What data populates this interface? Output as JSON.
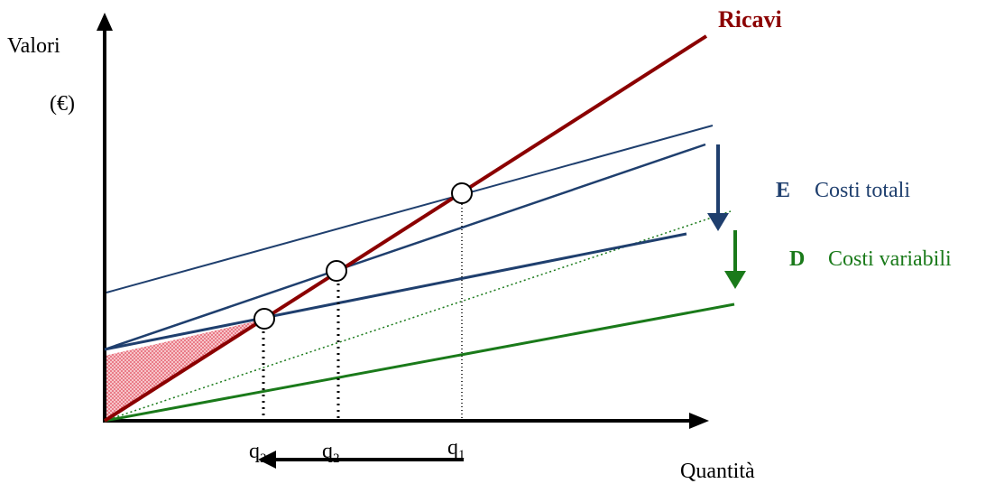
{
  "chart_data": {
    "type": "line",
    "ylabel": "Valori",
    "yunit": "(€)",
    "xlabel": "Quantità",
    "series": [
      {
        "name": "Ricavi",
        "color": "#8b0000"
      },
      {
        "name": "Costi totali",
        "letter": "E",
        "color": "#1f3f6e"
      },
      {
        "name": "Costi variabili",
        "letter": "D",
        "color": "#1a7a1a"
      }
    ],
    "break_even_points": [
      {
        "label": "q1",
        "main": "q",
        "sub": "1"
      },
      {
        "label": "q2",
        "main": "q",
        "sub": "2"
      },
      {
        "label": "q3",
        "main": "q",
        "sub": "3"
      }
    ],
    "colors": {
      "ricavi": "#8b0000",
      "costi_totali": "#1f3f6e",
      "costi_variabili": "#1a7a1a",
      "loss_area": "#f4a6ae",
      "axis": "#000000"
    }
  }
}
